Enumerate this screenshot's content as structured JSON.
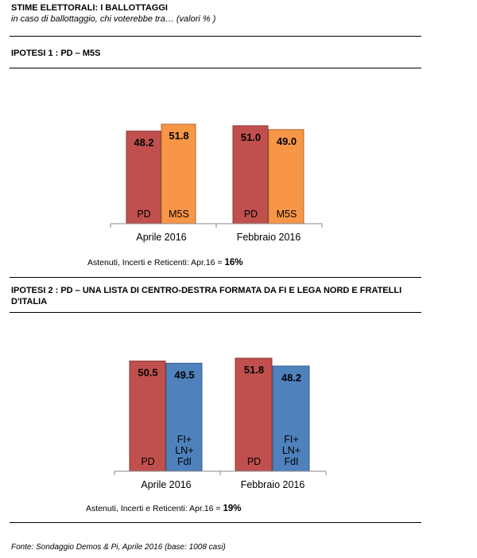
{
  "header": {
    "title": "STIME ELETTORALI:  I BALLOTTAGGI",
    "subtitle": "in caso di ballottaggio, chi voterebbe tra… (valori % )"
  },
  "section1": {
    "title": "IPOTESI 1 : PD – M5S",
    "note_text": "Astenuti, Incerti e Reticenti: Apr.16 = ",
    "note_value": "16%"
  },
  "section2": {
    "title": "IPOTESI 2 : PD – UNA LISTA  DI CENTRO-DESTRA FORMATA  DA FI E LEGA NORD E FRATELLI D'ITALIA",
    "note_text": "Astenuti, Incerti e Reticenti: Apr.16 = ",
    "note_value": "19%"
  },
  "footer": "Fonte: Sondaggio Demos & Pi, Aprile 2016 (base: 1008 casi)",
  "colors": {
    "pd": "#C0504D",
    "m5s": "#F79646",
    "fi_ln_fdi": "#4F81BD"
  },
  "chart_data": [
    {
      "type": "bar",
      "categories": [
        "Aprile 2016",
        "Febbraio 2016"
      ],
      "series": [
        {
          "name": "PD",
          "values": [
            48.2,
            51.0
          ]
        },
        {
          "name": "M5S",
          "values": [
            51.8,
            49.0
          ]
        }
      ],
      "value_labels": [
        [
          "48.2",
          "51.0"
        ],
        [
          "51.8",
          "49.0"
        ]
      ],
      "series_labels": [
        [
          "PD"
        ],
        [
          "M5S"
        ]
      ],
      "ylim": [
        0,
        52
      ]
    },
    {
      "type": "bar",
      "categories": [
        "Aprile 2016",
        "Febbraio 2016"
      ],
      "series": [
        {
          "name": "PD",
          "values": [
            50.5,
            51.8
          ]
        },
        {
          "name": "FI+ LN+ FdI",
          "values": [
            49.5,
            48.2
          ]
        }
      ],
      "value_labels": [
        [
          "50.5",
          "51.8"
        ],
        [
          "49.5",
          "48.2"
        ]
      ],
      "series_labels": [
        [
          "PD"
        ],
        [
          "FI+",
          "LN+",
          "FdI"
        ]
      ],
      "ylim": [
        0,
        52
      ]
    }
  ]
}
